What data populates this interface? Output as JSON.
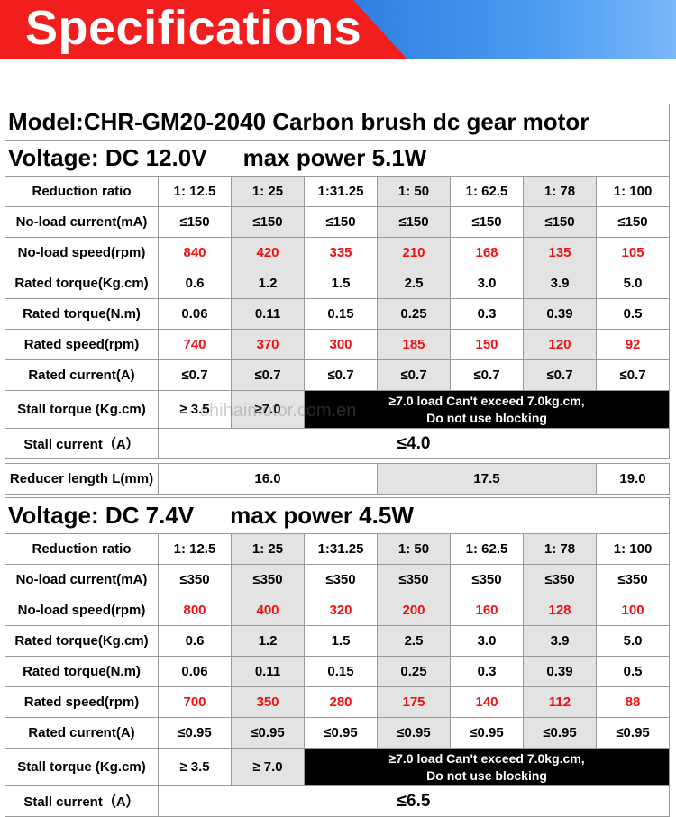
{
  "banner": {
    "title": "Specifications"
  },
  "model": "Model:CHR-GM20-2040 Carbon brush dc  gear motor",
  "ratios": [
    "1: 12.5",
    "1: 25",
    "1:31.25",
    "1: 50",
    "1: 62.5",
    "1: 78",
    "1: 100"
  ],
  "labels": {
    "reduction_ratio": "Reduction ratio",
    "no_load_current": "No-load current(mA)",
    "no_load_speed": "No-load speed(rpm)",
    "rated_torque_kg": "Rated torque(Kg.cm)",
    "rated_torque_nm": "Rated torque(N.m)",
    "rated_speed": "Rated speed(rpm)",
    "rated_current": "Rated current(A)",
    "stall_torque": "Stall torque (Kg.cm)",
    "stall_current": "Stall current（A）",
    "reducer_length": "Reducer length L(mm)"
  },
  "v12": {
    "voltage": "Voltage: DC 12.0V",
    "power": "max power 5.1W",
    "no_load_current": [
      "≤150",
      "≤150",
      "≤150",
      "≤150",
      "≤150",
      "≤150",
      "≤150"
    ],
    "no_load_speed": [
      "840",
      "420",
      "335",
      "210",
      "168",
      "135",
      "105"
    ],
    "rated_torque_kg": [
      "0.6",
      "1.2",
      "1.5",
      "2.5",
      "3.0",
      "3.9",
      "5.0"
    ],
    "rated_torque_nm": [
      "0.06",
      "0.11",
      "0.15",
      "0.25",
      "0.3",
      "0.39",
      "0.5"
    ],
    "rated_speed": [
      "740",
      "370",
      "300",
      "185",
      "150",
      "120",
      "92"
    ],
    "rated_current": [
      "≤0.7",
      "≤0.7",
      "≤0.7",
      "≤0.7",
      "≤0.7",
      "≤0.7",
      "≤0.7"
    ],
    "stall_torque": [
      "≥ 3.5",
      "≥7.0"
    ],
    "stall_note_1": "≥7.0  load Can't exceed 7.0kg.cm,",
    "stall_note_2": "Do not use blocking",
    "stall_current": "≤4.0"
  },
  "reducer_length": [
    "16.0",
    "17.5",
    "19.0"
  ],
  "v7": {
    "voltage": "Voltage: DC 7.4V",
    "power": "max power 4.5W",
    "no_load_current": [
      "≤350",
      "≤350",
      "≤350",
      "≤350",
      "≤350",
      "≤350",
      "≤350"
    ],
    "no_load_speed": [
      "800",
      "400",
      "320",
      "200",
      "160",
      "128",
      "100"
    ],
    "rated_torque_kg": [
      "0.6",
      "1.2",
      "1.5",
      "2.5",
      "3.0",
      "3.9",
      "5.0"
    ],
    "rated_torque_nm": [
      "0.06",
      "0.11",
      "0.15",
      "0.25",
      "0.3",
      "0.39",
      "0.5"
    ],
    "rated_speed": [
      "700",
      "350",
      "280",
      "175",
      "140",
      "112",
      "88"
    ],
    "rated_current": [
      "≤0.95",
      "≤0.95",
      "≤0.95",
      "≤0.95",
      "≤0.95",
      "≤0.95",
      "≤0.95"
    ],
    "stall_torque": [
      "≥ 3.5",
      "≥ 7.0"
    ],
    "stall_note_1": "≥7.0  load Can't exceed 7.0kg.cm,",
    "stall_note_2": "Do not use blocking",
    "stall_current": "≤6.5"
  },
  "watermark": "shihaimotor.com.en",
  "colors": {
    "banner_red": "#f21d1d",
    "banner_blue": "#2f7fe0",
    "highlight_red": "#ee1111",
    "alt_gray": "#e3e3e3"
  }
}
